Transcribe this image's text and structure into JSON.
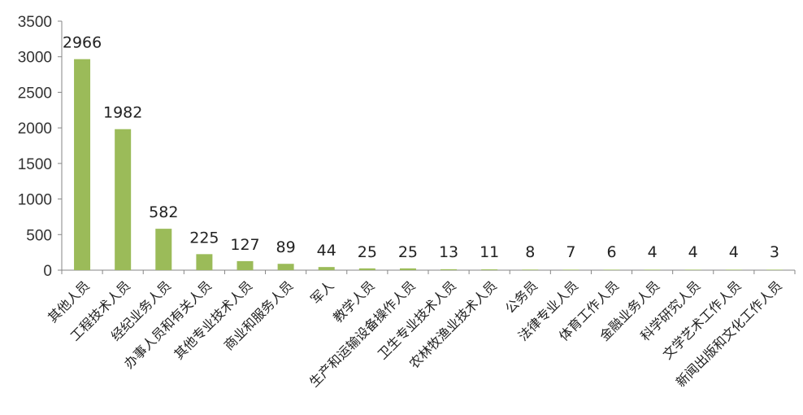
{
  "chart_data": {
    "type": "bar",
    "title": "",
    "xlabel": "",
    "ylabel": "",
    "ylim": [
      0,
      3500
    ],
    "yticks": [
      0,
      500,
      1000,
      1500,
      2000,
      2500,
      3000,
      3500
    ],
    "grid": false,
    "legend": "none",
    "bar_color": "#9bbb59",
    "categories": [
      "其他人员",
      "工程技术人员",
      "经纪业务人员",
      "办事人员和有关人员",
      "其他专业技术人员",
      "商业和服务人员",
      "军人",
      "教学人员",
      "生产和运输设备操作人员",
      "卫生专业技术人员",
      "农林牧渔业技术人员",
      "公务员",
      "法律专业人员",
      "体育工作人员",
      "金融业务人员",
      "科学研究人员",
      "文学艺术工作人员",
      "新闻出版和文化工作人员"
    ],
    "values": [
      2966,
      1982,
      582,
      225,
      127,
      89,
      44,
      25,
      25,
      13,
      11,
      8,
      7,
      6,
      4,
      4,
      4,
      3
    ]
  }
}
